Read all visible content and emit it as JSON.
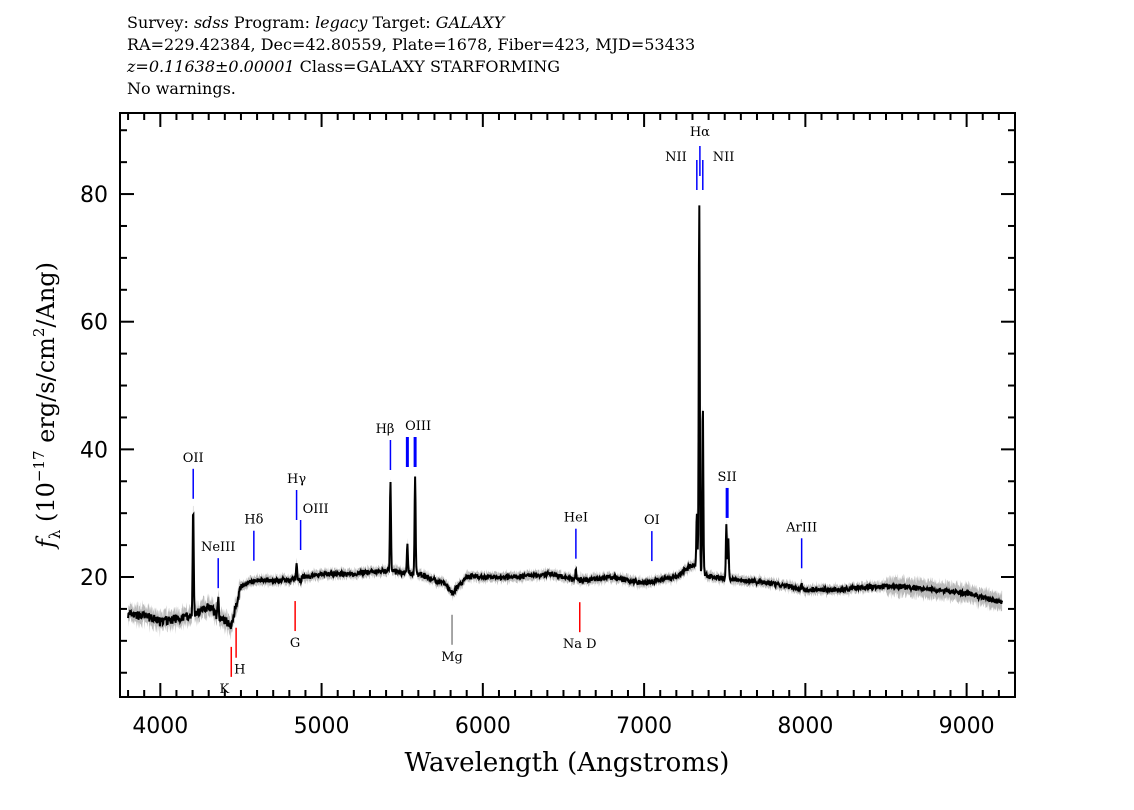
{
  "header": {
    "line1": {
      "survey_label": "Survey:",
      "survey": "sdss",
      "program_label": "Program:",
      "program": "legacy",
      "target_label": "Target:",
      "target": "GALAXY"
    },
    "line2": "RA=229.42384, Dec=42.80559, Plate=1678, Fiber=423, MJD=53433",
    "line3": {
      "z": "z=0.11638±0.00001",
      "class": "Class=GALAXY STARFORMING"
    },
    "line4": "No warnings."
  },
  "chart_data": {
    "type": "line",
    "xlabel": "Wavelength (Angstroms)",
    "ylabel": "(10^-17 erg/s/cm^2/Ang)",
    "ylabel_symbol": "f_λ",
    "xlim": [
      3750,
      9300
    ],
    "ylim": [
      1.2,
      92.7
    ],
    "xticks": [
      4000,
      5000,
      6000,
      7000,
      8000,
      9000
    ],
    "yticks": [
      20,
      40,
      60,
      80
    ],
    "grid": false,
    "colors": {
      "spectrum": "#000000",
      "error": "#bbbbbb",
      "emission": "#0000ff",
      "absorption": "#ff0000",
      "sky": "#888888"
    },
    "continuum": [
      [
        3800,
        14
      ],
      [
        3900,
        14
      ],
      [
        4000,
        13
      ],
      [
        4100,
        13.5
      ],
      [
        4200,
        14
      ],
      [
        4300,
        15.5
      ],
      [
        4350,
        14
      ],
      [
        4440,
        12.5
      ],
      [
        4500,
        18.5
      ],
      [
        4600,
        19.5
      ],
      [
        4700,
        19.5
      ],
      [
        4800,
        19.5
      ],
      [
        4900,
        20
      ],
      [
        5000,
        20.5
      ],
      [
        5200,
        20.5
      ],
      [
        5400,
        21
      ],
      [
        5600,
        20.5
      ],
      [
        5760,
        19
      ],
      [
        5810,
        17.5
      ],
      [
        5900,
        20
      ],
      [
        6000,
        20
      ],
      [
        6200,
        20
      ],
      [
        6400,
        20.5
      ],
      [
        6600,
        19.5
      ],
      [
        6800,
        20
      ],
      [
        7000,
        19
      ],
      [
        7200,
        20
      ],
      [
        7300,
        22
      ],
      [
        7400,
        20
      ],
      [
        7600,
        19.5
      ],
      [
        7800,
        19
      ],
      [
        8000,
        18
      ],
      [
        8200,
        18
      ],
      [
        8400,
        18.5
      ],
      [
        8600,
        18.5
      ],
      [
        8800,
        18
      ],
      [
        9000,
        17.5
      ],
      [
        9220,
        16
      ]
    ],
    "emission_peaks": [
      [
        4204,
        31
      ],
      [
        4359,
        17
      ],
      [
        4845,
        22
      ],
      [
        4870,
        19
      ],
      [
        5427,
        35
      ],
      [
        5532,
        25
      ],
      [
        5580,
        36
      ],
      [
        6577,
        21
      ],
      [
        7327,
        30
      ],
      [
        7342,
        79
      ],
      [
        7364,
        47
      ],
      [
        7510,
        28
      ],
      [
        7522,
        26
      ],
      [
        7977,
        19
      ]
    ],
    "line_markers": [
      {
        "label": "OII",
        "wl": 4204,
        "kind": "emission"
      },
      {
        "label": "NeIII",
        "wl": 4359,
        "kind": "emission"
      },
      {
        "label": "Hδ",
        "wl": 4580,
        "kind": "emission"
      },
      {
        "label": "Hγ",
        "wl": 4845,
        "kind": "emission"
      },
      {
        "label": "OIII",
        "wl": 4870,
        "kind": "emission"
      },
      {
        "label": "Hβ",
        "wl": 5427,
        "kind": "emission"
      },
      {
        "label": "OIII",
        "wl": 5532,
        "kind": "emission",
        "nolabel": true
      },
      {
        "label": "OIII",
        "wl": 5580,
        "kind": "emission"
      },
      {
        "label": "HeI",
        "wl": 6577,
        "kind": "emission"
      },
      {
        "label": "OI",
        "wl": 7048,
        "kind": "emission"
      },
      {
        "label": "NII",
        "wl": 7327,
        "kind": "emission"
      },
      {
        "label": "Hα",
        "wl": 7346,
        "kind": "emission"
      },
      {
        "label": "NII",
        "wl": 7364,
        "kind": "emission"
      },
      {
        "label": "SII",
        "wl": 7515,
        "kind": "emission"
      },
      {
        "label": "ArIII",
        "wl": 7977,
        "kind": "emission"
      },
      {
        "label": "K",
        "wl": 4440,
        "kind": "absorption"
      },
      {
        "label": "H",
        "wl": 4470,
        "kind": "absorption"
      },
      {
        "label": "G",
        "wl": 4836,
        "kind": "absorption"
      },
      {
        "label": "Mg",
        "wl": 5809,
        "kind": "sky"
      },
      {
        "label": "Na D",
        "wl": 6601,
        "kind": "absorption"
      }
    ]
  }
}
